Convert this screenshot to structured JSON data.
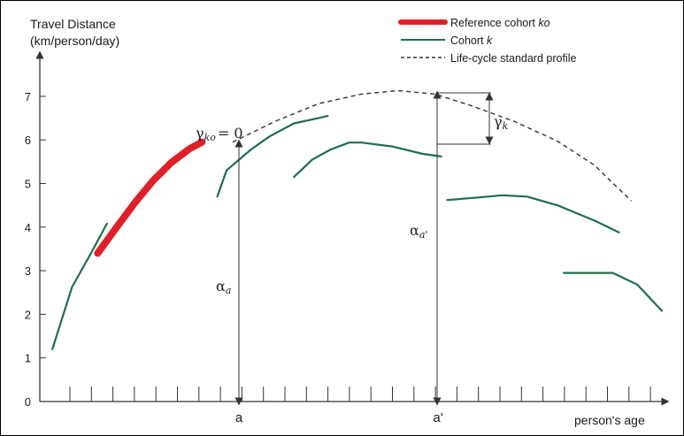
{
  "chart_data": {
    "type": "line",
    "ylabel_line1": "Travel Distance",
    "ylabel_line2": "(km/person/day)",
    "xlabel": "person's age",
    "ylim": [
      0,
      7.5
    ],
    "yticks": [
      "0",
      "1",
      "2",
      "3",
      "4",
      "5",
      "6",
      "7"
    ],
    "x_markers": {
      "a": "a",
      "a_prime": "a'"
    },
    "grid": false,
    "legend": {
      "placement": "top-right",
      "reference_prefix": "Reference cohort ",
      "reference_italic": "ko",
      "cohort_prefix": "Cohort ",
      "cohort_italic": "k",
      "profile": "Life-cycle standard profile"
    },
    "annotations": {
      "gamma_ko_symbol": "γ",
      "gamma_ko_sub": "ko",
      "gamma_ko_eq": "= 0",
      "gamma_k_symbol": "γ",
      "gamma_k_sub": "k",
      "alpha_a_symbol": "α",
      "alpha_a_sub": "a",
      "alpha_ap_symbol": "α",
      "alpha_ap_sub": "a'"
    },
    "colors": {
      "reference": "#e02028",
      "cohort": "#1f6e4a",
      "profile": "#333333",
      "axis": "#333333"
    },
    "profile": {
      "style": "dashed",
      "x": [
        0.3,
        0.37,
        0.44,
        0.51,
        0.57,
        0.63,
        0.69,
        0.76,
        0.83,
        0.89,
        0.95
      ],
      "y": [
        5.95,
        6.43,
        6.83,
        7.05,
        7.13,
        7.05,
        6.78,
        6.42,
        5.97,
        5.42,
        4.6
      ]
    },
    "reference": {
      "x": [
        0.08,
        0.11,
        0.14,
        0.17,
        0.2,
        0.23,
        0.25
      ],
      "y": [
        3.4,
        3.98,
        4.55,
        5.06,
        5.48,
        5.8,
        5.95
      ]
    },
    "series": [
      {
        "x": [
          0.006,
          0.038,
          0.069,
          0.095
        ],
        "y": [
          1.2,
          2.62,
          3.4,
          4.08
        ]
      },
      {
        "x": [
          0.275,
          0.29,
          0.33,
          0.36,
          0.4,
          0.44,
          0.455
        ],
        "y": [
          4.7,
          5.3,
          5.78,
          6.08,
          6.38,
          6.5,
          6.55
        ]
      },
      {
        "x": [
          0.4,
          0.43,
          0.46,
          0.49,
          0.51,
          0.56,
          0.61,
          0.64
        ],
        "y": [
          5.15,
          5.55,
          5.78,
          5.94,
          5.94,
          5.85,
          5.68,
          5.62
        ]
      },
      {
        "x": [
          0.65,
          0.7,
          0.74,
          0.78,
          0.83,
          0.89,
          0.93
        ],
        "y": [
          4.62,
          4.68,
          4.73,
          4.7,
          4.5,
          4.15,
          3.88
        ]
      },
      {
        "x": [
          0.84,
          0.92,
          0.96,
          1.0
        ],
        "y": [
          2.95,
          2.95,
          2.68,
          2.08
        ]
      }
    ]
  }
}
